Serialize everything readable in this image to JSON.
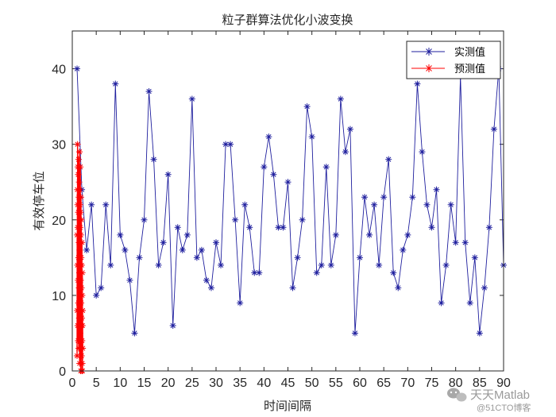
{
  "chart_data": {
    "type": "line",
    "title": "粒子群算法优化小波变换",
    "xlabel": "时间间隔",
    "ylabel": "有效停车位",
    "xlim": [
      0,
      90
    ],
    "ylim": [
      0,
      45
    ],
    "xticks": [
      0,
      5,
      10,
      15,
      20,
      25,
      30,
      35,
      40,
      45,
      50,
      55,
      60,
      65,
      70,
      75,
      80,
      85,
      90
    ],
    "yticks": [
      0,
      10,
      20,
      30,
      40
    ],
    "legend_position": "top-right",
    "grid": false,
    "series": [
      {
        "name": "实测值",
        "color": "#1f1f9e",
        "marker": "asterisk",
        "x": [
          1,
          2,
          3,
          4,
          5,
          6,
          7,
          8,
          9,
          10,
          11,
          12,
          13,
          14,
          15,
          16,
          17,
          18,
          19,
          20,
          21,
          22,
          23,
          24,
          25,
          26,
          27,
          28,
          29,
          30,
          31,
          32,
          33,
          34,
          35,
          36,
          37,
          38,
          39,
          40,
          41,
          42,
          43,
          44,
          45,
          46,
          47,
          48,
          49,
          50,
          51,
          52,
          53,
          54,
          55,
          56,
          57,
          58,
          59,
          60,
          61,
          62,
          63,
          64,
          65,
          66,
          67,
          68,
          69,
          70,
          71,
          72,
          73,
          74,
          75,
          76,
          77,
          78,
          79,
          80,
          81,
          82,
          83,
          84,
          85,
          86,
          87,
          88,
          89,
          90
        ],
        "y": [
          40,
          24,
          16,
          22,
          10,
          11,
          22,
          14,
          38,
          18,
          16,
          12,
          5,
          15,
          20,
          37,
          28,
          14,
          17,
          26,
          6,
          19,
          16,
          18,
          36,
          15,
          16,
          12,
          11,
          17,
          14,
          30,
          30,
          20,
          9,
          22,
          19,
          13,
          13,
          27,
          31,
          26,
          19,
          19,
          25,
          11,
          15,
          20,
          35,
          31,
          13,
          14,
          27,
          14,
          18,
          36,
          29,
          32,
          5,
          15,
          23,
          18,
          22,
          14,
          23,
          28,
          13,
          11,
          16,
          18,
          23,
          38,
          29,
          22,
          19,
          24,
          9,
          14,
          22,
          17,
          39,
          17,
          9,
          15,
          5,
          11,
          19,
          32,
          40,
          14
        ]
      },
      {
        "name": "预测值",
        "color": "#ff0000",
        "marker": "asterisk",
        "x": [
          1.0,
          1.02,
          1.04,
          1.06,
          1.08,
          1.1,
          1.12,
          1.14,
          1.16,
          1.18,
          1.2,
          1.22,
          1.24,
          1.26,
          1.28,
          1.3,
          1.32,
          1.34,
          1.36,
          1.38,
          1.4,
          1.42,
          1.44,
          1.46,
          1.48,
          1.5,
          1.52,
          1.54,
          1.56,
          1.58,
          1.6,
          1.62,
          1.64,
          1.66,
          1.68,
          1.7,
          1.72,
          1.74,
          1.76,
          1.78,
          1.8,
          1.82,
          1.84,
          1.86,
          1.88,
          1.9,
          1.92,
          1.94,
          1.96,
          1.98,
          2.0,
          2.02,
          2.04,
          2.06,
          2.08,
          2.1,
          2.12,
          2.14,
          2.16,
          2.18
        ],
        "y": [
          2,
          18,
          8,
          24,
          14,
          30,
          22,
          6,
          19,
          27,
          12,
          4,
          26,
          21,
          9,
          15,
          28,
          3,
          23,
          17,
          11,
          25,
          7,
          20,
          13,
          29,
          1,
          16,
          24,
          10,
          22,
          5,
          19,
          14,
          27,
          8,
          21,
          0,
          12,
          18,
          3,
          23,
          9,
          15,
          6,
          20,
          11,
          2,
          14,
          7,
          0,
          17,
          4,
          10,
          1,
          13,
          6,
          0,
          8,
          3
        ]
      }
    ]
  },
  "watermark": {
    "icon": "wechat-icon",
    "text": "天天Matlab",
    "sub": "@51CTO博客"
  }
}
